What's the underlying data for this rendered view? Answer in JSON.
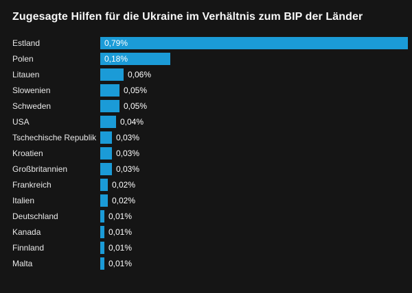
{
  "panel": {
    "background_color": "#151515"
  },
  "chart_data": {
    "type": "bar",
    "orientation": "horizontal",
    "title": "Zugesagte Hilfen für die Ukraine im Verhältnis zum BIP der Länder",
    "categories": [
      "Estland",
      "Polen",
      "Litauen",
      "Slowenien",
      "Schweden",
      "USA",
      "Tschechische Republik",
      "Kroatien",
      "Großbritannien",
      "Frankreich",
      "Italien",
      "Deutschland",
      "Kanada",
      "Finnland",
      "Malta"
    ],
    "values": [
      0.79,
      0.18,
      0.06,
      0.05,
      0.05,
      0.04,
      0.03,
      0.03,
      0.03,
      0.02,
      0.02,
      0.01,
      0.01,
      0.01,
      0.01
    ],
    "value_labels": [
      "0,79%",
      "0,18%",
      "0,06%",
      "0,05%",
      "0,05%",
      "0,04%",
      "0,03%",
      "0,03%",
      "0,03%",
      "0,02%",
      "0,02%",
      "0,01%",
      "0,01%",
      "0,01%",
      "0,01%"
    ],
    "xlim": [
      0,
      0.79
    ],
    "grid": false,
    "legend": "none",
    "bar_color": "#1b9bd7",
    "value_label_color": "#ffffff",
    "category_label_color": "#e9e9e9"
  }
}
